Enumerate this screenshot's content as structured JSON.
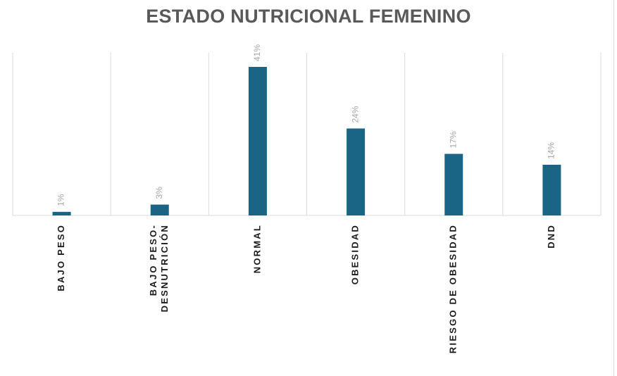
{
  "chart_data": {
    "type": "bar",
    "title": "ESTADO NUTRICIONAL  FEMENINO",
    "categories": [
      [
        "BAJO PESO"
      ],
      [
        "BAJO PESO-",
        "DESNUTRICIÓN"
      ],
      [
        "NORMAL"
      ],
      [
        "OBESIDAD"
      ],
      [
        "RIESGO DE OBESIDAD"
      ],
      [
        "DND"
      ]
    ],
    "values": [
      1,
      3,
      41,
      24,
      17,
      14
    ],
    "data_labels": [
      "1%",
      "3%",
      "41%",
      "24%",
      "17%",
      "14%"
    ],
    "ylim": [
      0,
      41
    ],
    "grid": "vertical",
    "bar_color": "#1a6485",
    "label_color": "#a6a6a6",
    "grid_color": "#d9d9d9",
    "tick_color": "#1a1a1a"
  }
}
